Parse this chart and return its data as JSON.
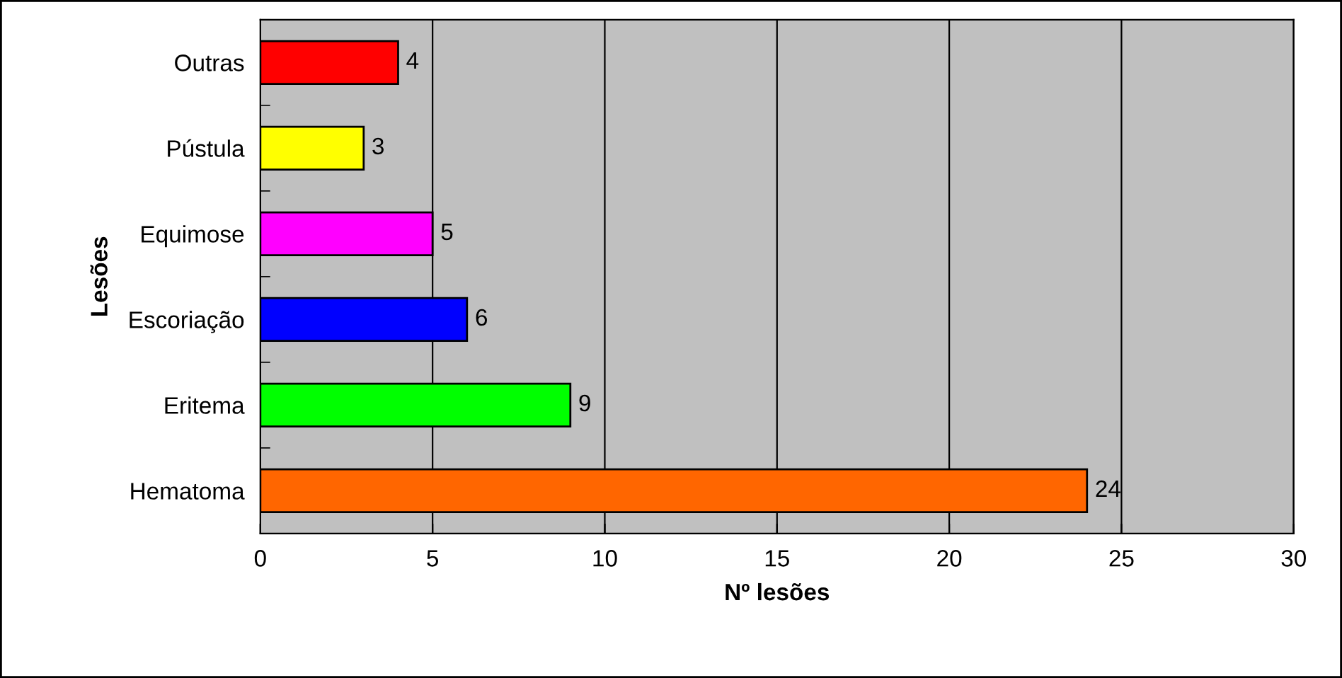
{
  "chart_data": {
    "type": "bar",
    "orientation": "horizontal",
    "xlabel": "Nº lesões",
    "ylabel": "Lesões",
    "categories": [
      "Outras",
      "Pústula",
      "Equimose",
      "Escoriação",
      "Eritema",
      "Hematoma"
    ],
    "values": [
      4,
      3,
      5,
      6,
      9,
      24
    ],
    "colors": [
      "#ff0000",
      "#ffff00",
      "#ff00ff",
      "#0000ff",
      "#00ff00",
      "#ff6600"
    ],
    "xlim": [
      0,
      30
    ],
    "xticks": [
      0,
      5,
      10,
      15,
      20,
      25,
      30
    ],
    "grid": "x",
    "data_labels": true
  }
}
